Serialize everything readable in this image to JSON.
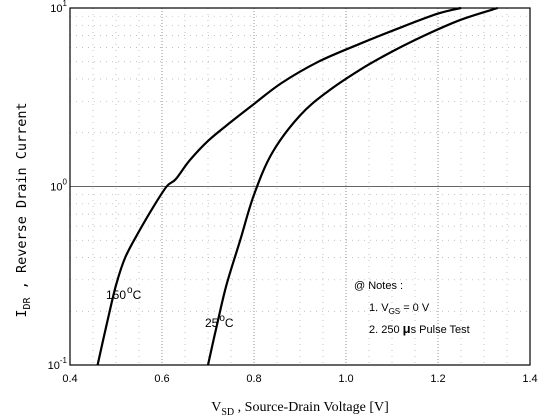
{
  "chart_data": {
    "type": "line",
    "xlabel": {
      "main": "V",
      "sub": "SD",
      "rest": " , Source-Drain Voltage   [V]"
    },
    "ylabel": {
      "main": "I",
      "sub": "DR",
      "rest": " ,  Reverse Drain Current"
    },
    "x_ticks": [
      "0.4",
      "0.6",
      "0.8",
      "1.0",
      "1.2",
      "1.4"
    ],
    "y_ticks": [
      {
        "base": "10",
        "exp": "-1"
      },
      {
        "base": "10",
        "exp": "0"
      },
      {
        "base": "10",
        "exp": "1"
      }
    ],
    "xlim": [
      0.4,
      1.4
    ],
    "ylim": [
      0.1,
      10
    ],
    "y_scale": "log",
    "grid": true,
    "series": [
      {
        "name": "150 °C",
        "label_main": "150",
        "label_unit": "C",
        "x": [
          0.46,
          0.48,
          0.5,
          0.52,
          0.55,
          0.58,
          0.61,
          0.63,
          0.66,
          0.7,
          0.75,
          0.8,
          0.86,
          0.94,
          1.03,
          1.12,
          1.2,
          1.25
        ],
        "y": [
          0.1,
          0.17,
          0.28,
          0.4,
          0.56,
          0.76,
          1.0,
          1.1,
          1.4,
          1.8,
          2.3,
          2.9,
          3.8,
          5.0,
          6.3,
          7.8,
          9.3,
          10.0
        ]
      },
      {
        "name": "25 °C",
        "label_main": "25",
        "label_unit": "C",
        "x": [
          0.7,
          0.72,
          0.74,
          0.77,
          0.8,
          0.84,
          0.9,
          0.96,
          1.03,
          1.1,
          1.17,
          1.25,
          1.33
        ],
        "y": [
          0.1,
          0.17,
          0.28,
          0.5,
          0.9,
          1.55,
          2.5,
          3.4,
          4.5,
          5.7,
          7.0,
          8.6,
          10.0
        ]
      }
    ],
    "notes": {
      "title": "@ Notes :",
      "line1_prefix": "1. V",
      "line1_sub": "GS",
      "line1_suffix": " = 0 V",
      "line2_prefix": "2. 250 ",
      "line2_mu": "μ",
      "line2_suffix": "s Pulse Test"
    }
  }
}
